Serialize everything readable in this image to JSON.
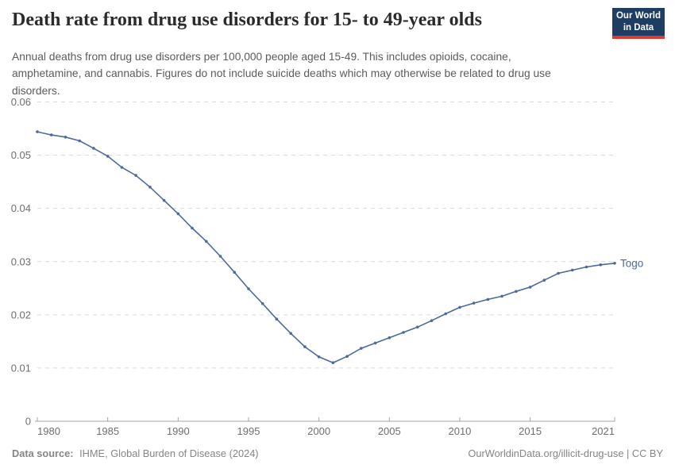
{
  "header": {
    "title": "Death rate from drug use disorders for 15- to 49-year olds",
    "subtitle": "Annual deaths from drug use disorders per 100,000 people aged 15-49. This includes opioids, cocaine, amphetamine, and cannabis. Figures do not include suicide deaths which may otherwise be related to drug use disorders."
  },
  "logo": {
    "line1": "Our World",
    "line2": "in Data",
    "bg_color": "#1d3d63",
    "accent_color": "#dc3b34"
  },
  "footer": {
    "source_label": "Data source:",
    "source_text": "IHME, Global Burden of Disease (2024)",
    "credit": "OurWorldinData.org/illicit-drug-use | CC BY"
  },
  "chart_data": {
    "type": "line",
    "title": "Death rate from drug use disorders for 15- to 49-year olds",
    "subtitle": "Annual deaths from drug use disorders per 100,000 people aged 15-49. This includes opioids, cocaine, amphetamine, and cannabis. Figures do not include suicide deaths which may otherwise be related to drug use disorders.",
    "xlabel": "",
    "ylabel": "",
    "xlim": [
      1980,
      2021
    ],
    "ylim": [
      0,
      0.06
    ],
    "grid": "horizontal-dashed",
    "legend": "end-of-line-label",
    "x_ticks": [
      1980,
      1985,
      1990,
      1995,
      2000,
      2005,
      2010,
      2015,
      2021
    ],
    "x_tick_labels": [
      "1980",
      "1985",
      "1990",
      "1995",
      "2000",
      "2005",
      "2010",
      "2015",
      "2021"
    ],
    "y_ticks": [
      0,
      0.01,
      0.02,
      0.03,
      0.04,
      0.05,
      0.06
    ],
    "y_tick_labels": [
      "0",
      "0.01",
      "0.02",
      "0.03",
      "0.04",
      "0.05",
      "0.06"
    ],
    "x": [
      1980,
      1981,
      1982,
      1983,
      1984,
      1985,
      1986,
      1987,
      1988,
      1989,
      1990,
      1991,
      1992,
      1993,
      1994,
      1995,
      1996,
      1997,
      1998,
      1999,
      2000,
      2001,
      2002,
      2003,
      2004,
      2005,
      2006,
      2007,
      2008,
      2009,
      2010,
      2011,
      2012,
      2013,
      2014,
      2015,
      2016,
      2017,
      2018,
      2019,
      2020,
      2021
    ],
    "series": [
      {
        "name": "Togo",
        "color": "#4C6A9C",
        "values": [
          0.0544,
          0.0538,
          0.0534,
          0.0527,
          0.0513,
          0.0498,
          0.0477,
          0.0462,
          0.044,
          0.0415,
          0.039,
          0.0363,
          0.0338,
          0.031,
          0.028,
          0.0249,
          0.0221,
          0.0192,
          0.0165,
          0.014,
          0.0121,
          0.011,
          0.0122,
          0.0137,
          0.0147,
          0.0157,
          0.0167,
          0.0177,
          0.0189,
          0.0202,
          0.0214,
          0.0222,
          0.0229,
          0.0235,
          0.0244,
          0.0252,
          0.0265,
          0.0278,
          0.0284,
          0.029,
          0.0294,
          0.0297
        ]
      }
    ]
  }
}
